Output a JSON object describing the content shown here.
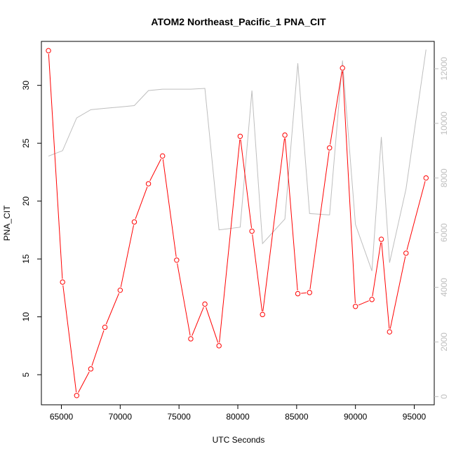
{
  "chart_data": {
    "type": "line",
    "title": "ATOM2 Northeast_Pacific_1 PNA_CIT",
    "xlabel": "UTC Seconds",
    "ylabel": "PNA_CIT",
    "xlim": [
      63300,
      96700
    ],
    "ylim": [
      2.4,
      33.8
    ],
    "ylim_right": [
      -300,
      13000
    ],
    "x_ticks": [
      65000,
      70000,
      75000,
      80000,
      85000,
      90000,
      95000
    ],
    "y_ticks": [
      5,
      10,
      15,
      20,
      25,
      30
    ],
    "y_ticks_right": [
      0,
      2000,
      4000,
      6000,
      8000,
      10000,
      12000
    ],
    "grid": false,
    "series": [
      {
        "role": "primary",
        "color": "#ff0000",
        "marker": "open-circle",
        "x": [
          63900,
          65100,
          66300,
          67500,
          68700,
          70000,
          71200,
          72400,
          73600,
          74800,
          76000,
          77200,
          78400,
          80200,
          81200,
          82100,
          84000,
          85100,
          86100,
          87800,
          88900,
          90000,
          91400,
          92200,
          92900,
          94300,
          96000
        ],
        "values": [
          33.0,
          13.0,
          3.2,
          5.5,
          9.1,
          12.3,
          18.2,
          21.5,
          23.9,
          14.9,
          8.1,
          11.1,
          7.5,
          25.6,
          17.4,
          10.2,
          25.7,
          12.0,
          12.1,
          24.6,
          31.5,
          10.9,
          11.5,
          16.7,
          8.7,
          15.5,
          22.0
        ]
      },
      {
        "role": "secondary-axis",
        "color": "#bebebe",
        "marker": "none",
        "x": [
          63900,
          65100,
          66300,
          67500,
          68700,
          70000,
          71200,
          72400,
          73600,
          74800,
          76000,
          77200,
          78400,
          80200,
          81200,
          82100,
          84000,
          85100,
          86100,
          87800,
          88900,
          90000,
          91400,
          92200,
          92900,
          94300,
          96000
        ],
        "values": [
          8800,
          9000,
          10200,
          10500,
          10550,
          10600,
          10650,
          11200,
          11250,
          11250,
          11250,
          11280,
          6100,
          6200,
          11200,
          5600,
          6500,
          12200,
          6700,
          6650,
          12300,
          6300,
          4600,
          9500,
          4900,
          7600,
          12700
        ]
      }
    ]
  }
}
